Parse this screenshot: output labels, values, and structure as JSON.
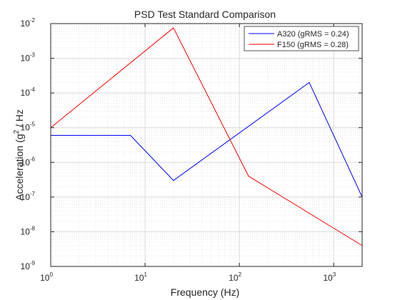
{
  "chart_data": {
    "type": "line",
    "title": "PSD Test Standard Comparison",
    "xlabel": "Frequency (Hz)",
    "ylabel": "Acceleration (g",
    "ylabel_sup": "2",
    "ylabel_tail": " / Hz",
    "xscale": "log",
    "yscale": "log",
    "xlim": [
      1,
      2000
    ],
    "ylim": [
      1e-09,
      0.01
    ],
    "grid": true,
    "minor_grid": true,
    "legend_position": "top-right",
    "x_ticks": [
      {
        "value": 1,
        "base": "10",
        "exp": "0"
      },
      {
        "value": 10,
        "base": "10",
        "exp": "1"
      },
      {
        "value": 100,
        "base": "10",
        "exp": "2"
      },
      {
        "value": 1000,
        "base": "10",
        "exp": "3"
      }
    ],
    "y_ticks": [
      {
        "value": 1e-09,
        "base": "10",
        "exp": "-9"
      },
      {
        "value": 1e-08,
        "base": "10",
        "exp": "-8"
      },
      {
        "value": 1e-07,
        "base": "10",
        "exp": "-7"
      },
      {
        "value": 1e-06,
        "base": "10",
        "exp": "-6"
      },
      {
        "value": 1e-05,
        "base": "10",
        "exp": "-5"
      },
      {
        "value": 0.0001,
        "base": "10",
        "exp": "-4"
      },
      {
        "value": 0.001,
        "base": "10",
        "exp": "-3"
      },
      {
        "value": 0.01,
        "base": "10",
        "exp": "-2"
      }
    ],
    "series": [
      {
        "name": "A320 (gRMS = 0.24)",
        "color": "#0000ff",
        "x": [
          1,
          7,
          20,
          550,
          2000
        ],
        "y": [
          6e-06,
          6e-06,
          3e-07,
          0.0002,
          1e-07
        ]
      },
      {
        "name": "F150 (gRMS = 0.28)",
        "color": "#ff0000",
        "x": [
          1,
          20,
          125,
          2000
        ],
        "y": [
          1e-05,
          0.0075,
          4e-07,
          4e-09
        ]
      }
    ]
  }
}
